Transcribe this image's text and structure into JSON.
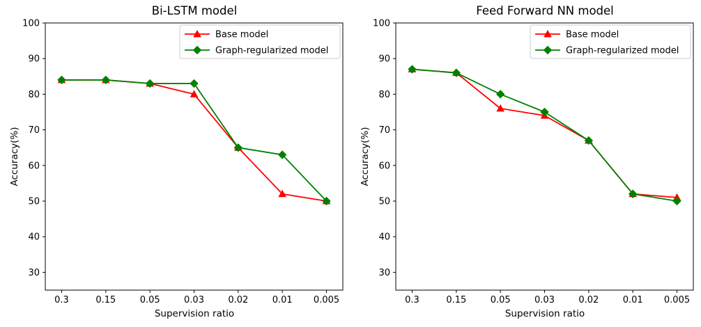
{
  "figure": {
    "background": "#ffffff",
    "text_color": "#000000",
    "spine_color": "#000000",
    "legend_border_color": "#cccccc"
  },
  "chart_data": [
    {
      "type": "line",
      "title": "Bi-LSTM model",
      "xlabel": "Supervision ratio",
      "ylabel": "Accuracy(%)",
      "categories": [
        "0.3",
        "0.15",
        "0.05",
        "0.03",
        "0.02",
        "0.01",
        "0.005"
      ],
      "yticks": [
        "100",
        "90",
        "80",
        "70",
        "60",
        "50",
        "40",
        "30"
      ],
      "ylim": [
        25,
        100
      ],
      "grid": false,
      "legend_position": "upper right",
      "series": [
        {
          "name": "Base model",
          "color": "#ff0000",
          "marker": "triangle",
          "values": [
            84,
            84,
            83,
            80,
            65,
            52,
            50
          ]
        },
        {
          "name": "Graph-regularized model",
          "color": "#008000",
          "marker": "diamond",
          "values": [
            84,
            84,
            83,
            83,
            65,
            63,
            50
          ]
        }
      ]
    },
    {
      "type": "line",
      "title": "Feed Forward NN model",
      "xlabel": "Supervision ratio",
      "ylabel": "Accuracy(%)",
      "categories": [
        "0.3",
        "0.15",
        "0.05",
        "0.03",
        "0.02",
        "0.01",
        "0.005"
      ],
      "yticks": [
        "100",
        "90",
        "80",
        "70",
        "60",
        "50",
        "40",
        "30"
      ],
      "ylim": [
        25,
        100
      ],
      "grid": false,
      "legend_position": "upper right",
      "series": [
        {
          "name": "Base model",
          "color": "#ff0000",
          "marker": "triangle",
          "values": [
            87,
            86,
            76,
            74,
            67,
            52,
            51
          ]
        },
        {
          "name": "Graph-regularized model",
          "color": "#008000",
          "marker": "diamond",
          "values": [
            87,
            86,
            80,
            75,
            67,
            52,
            50
          ]
        }
      ]
    }
  ]
}
